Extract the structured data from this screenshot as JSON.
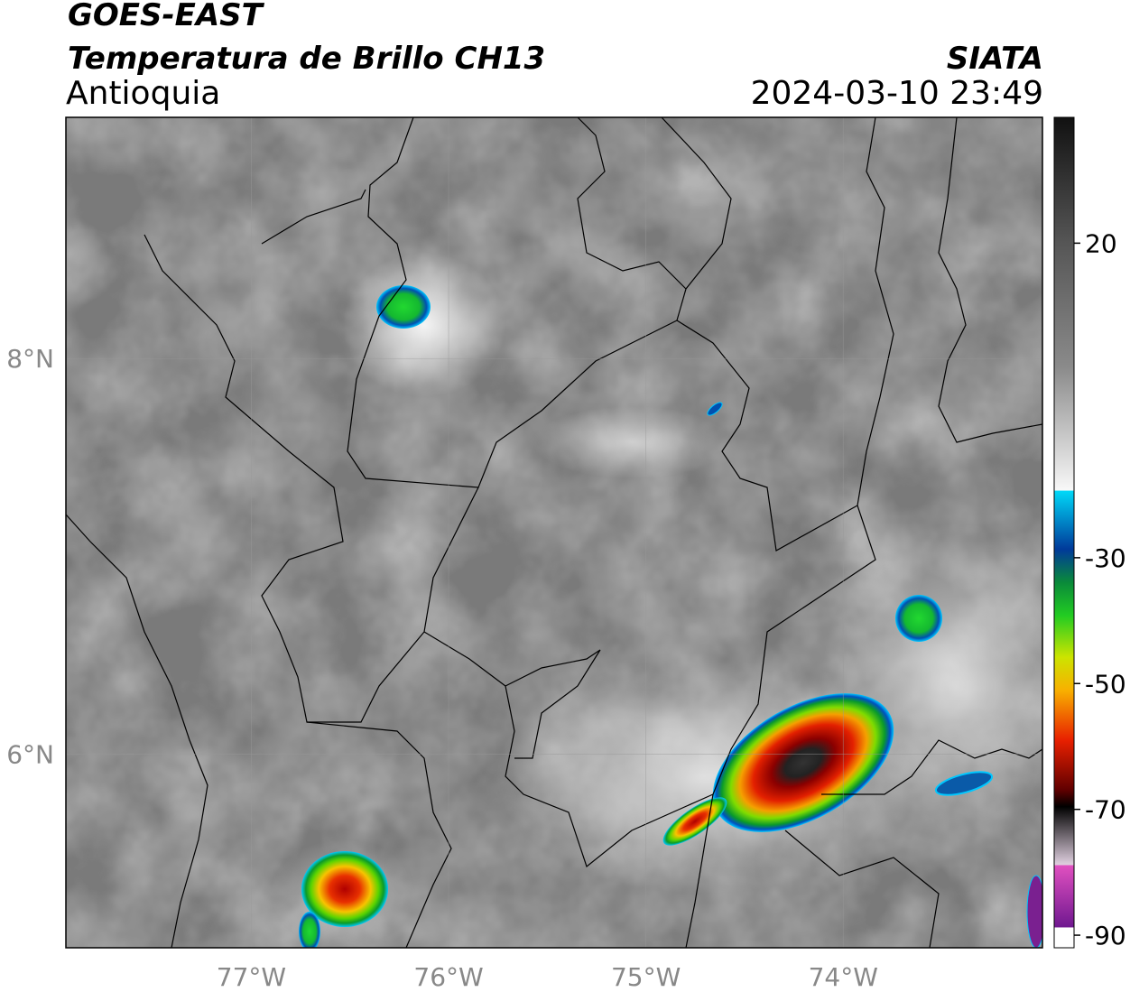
{
  "header": {
    "title": "GOES-EAST",
    "subtitle": "Temperatura de Brillo CH13",
    "region": "Antioquia",
    "source": "SIATA",
    "datetime": "2024-03-10 23:49"
  },
  "map": {
    "xlim": [
      -77.94,
      -72.99
    ],
    "ylim": [
      5.02,
      9.22
    ],
    "xticks": [
      {
        "value": -77,
        "label": "77°W"
      },
      {
        "value": -76,
        "label": "76°W"
      },
      {
        "value": -75,
        "label": "75°W"
      },
      {
        "value": -74,
        "label": "74°W"
      }
    ],
    "yticks": [
      {
        "value": 8,
        "label": "8°N"
      },
      {
        "value": 6,
        "label": "6°N"
      }
    ],
    "colorbar": {
      "lim": [
        -92,
        40
      ],
      "ticks": [
        20,
        -30,
        -50,
        -70,
        -90
      ]
    }
  }
}
